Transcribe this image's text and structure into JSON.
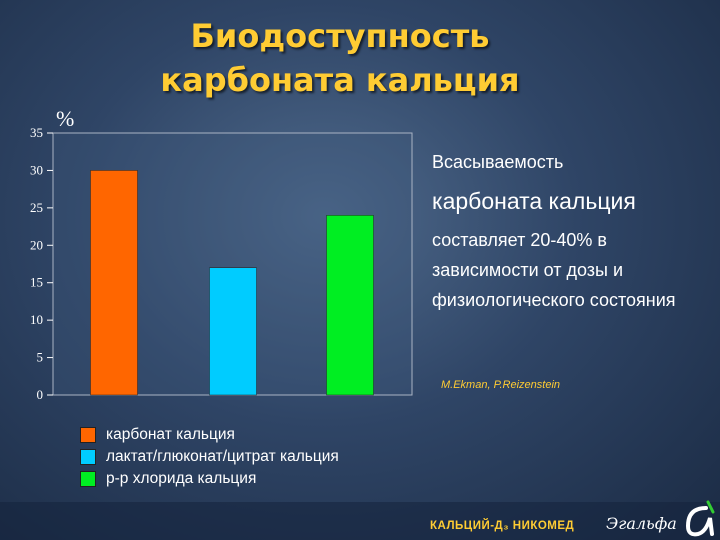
{
  "title": {
    "line1": "Биодоступность",
    "line2": "карбоната кальция"
  },
  "chart_data": {
    "type": "bar",
    "ylabel": "%",
    "ylim": [
      0,
      35
    ],
    "yticks": [
      0,
      5,
      10,
      15,
      20,
      25,
      30,
      35
    ],
    "grid": false,
    "legend_position": "bottom-left",
    "series": [
      {
        "name": "карбонат кальция",
        "value": 30,
        "color": "#ff6600"
      },
      {
        "name": "лактат/глюконат/цитрат кальция",
        "value": 17,
        "color": "#00ccff"
      },
      {
        "name": "р-р хлорида кальция",
        "value": 24,
        "color": "#00ee22"
      }
    ]
  },
  "side": {
    "line1": "Всасываемость",
    "line2": "карбоната кальция",
    "line3": "составляет 20-40% в зависимости от дозы и физиологического состояния"
  },
  "citation": "M.Ekman, P.Reizenstein",
  "footer": {
    "text": "КАЛЬЦИЙ-Д₃ НИКОМЕД",
    "logo": "Эгальфа"
  }
}
